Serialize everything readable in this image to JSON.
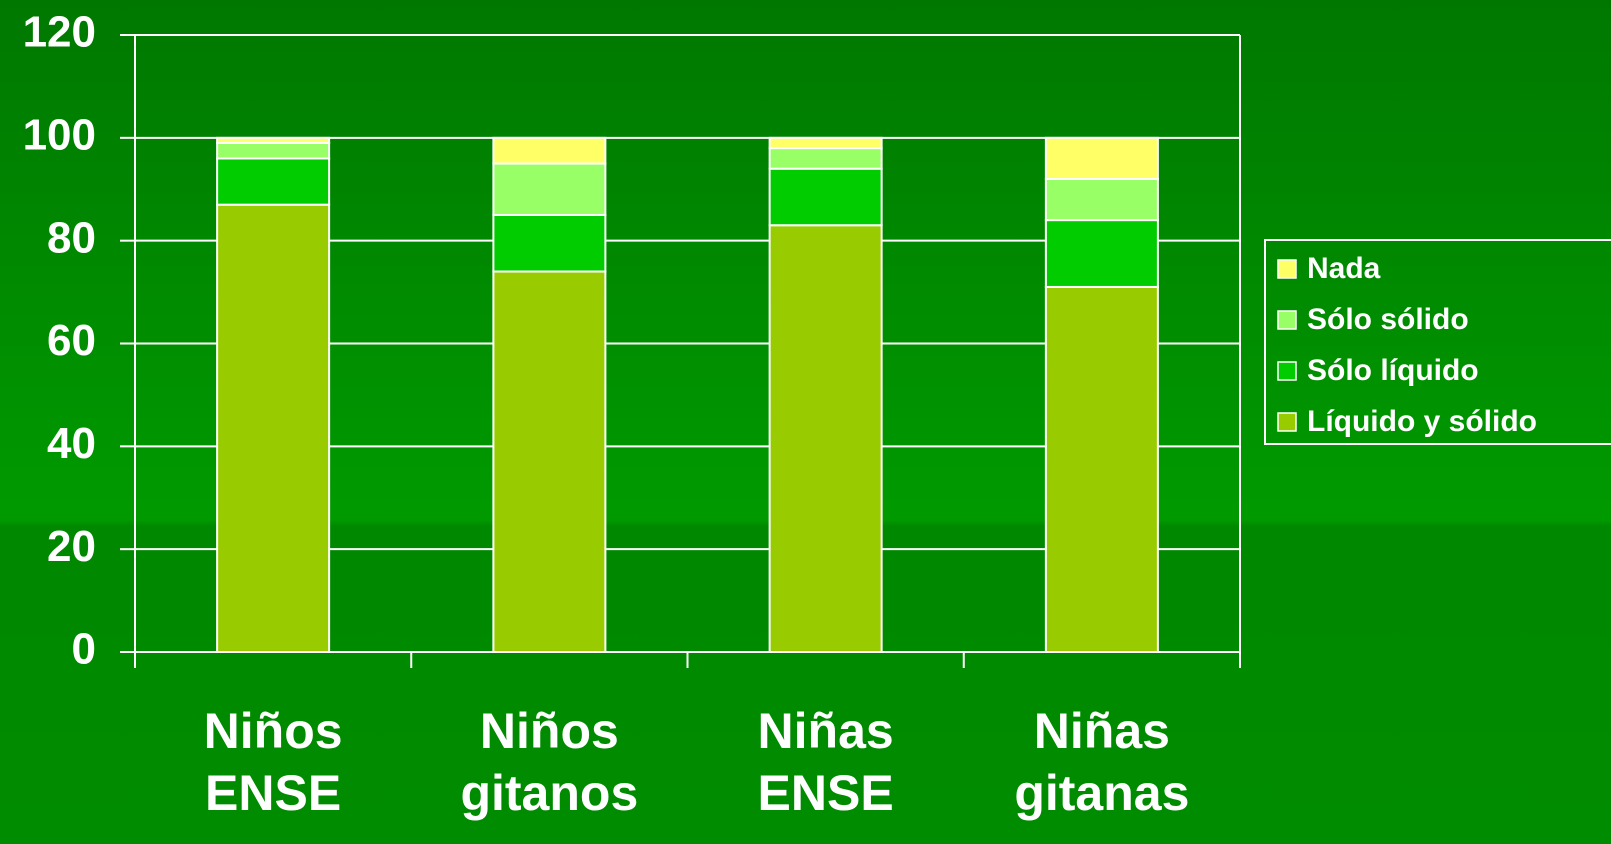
{
  "chart_data": {
    "type": "stacked_bar",
    "categories": [
      "Niños ENSE",
      "Niños gitanos",
      "Niñas ENSE",
      "Niñas gitanas"
    ],
    "series": [
      {
        "name": "Líquido y sólido",
        "color": "#99cc00",
        "values": [
          87,
          74,
          83,
          71
        ]
      },
      {
        "name": "Sólo líquido",
        "color": "#00cc00",
        "values": [
          9,
          11,
          11,
          13
        ]
      },
      {
        "name": "Sólo sólido",
        "color": "#99ff66",
        "values": [
          3,
          10,
          4,
          8
        ]
      },
      {
        "name": "Nada",
        "color": "#ffff66",
        "values": [
          1,
          5,
          2,
          8
        ]
      }
    ],
    "ylim": [
      0,
      120
    ],
    "yticks": [
      0,
      20,
      40,
      60,
      80,
      100,
      120
    ],
    "grid": true,
    "legend": "right"
  }
}
